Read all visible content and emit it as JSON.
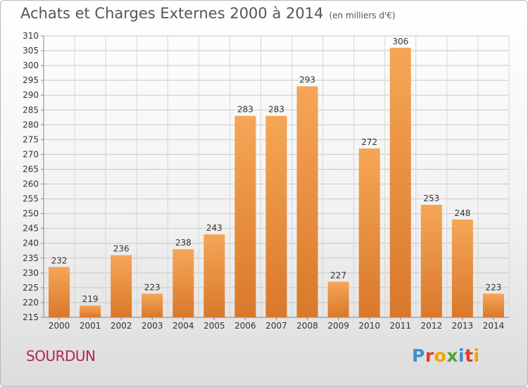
{
  "header": {
    "title": "Achats et Charges Externes 2000 à 2014",
    "unit": "(en milliers d'€)"
  },
  "footer": {
    "place": "SOURDUN",
    "logo_letters": [
      "P",
      "r",
      "o",
      "x",
      "i",
      "t",
      "i"
    ],
    "logo_colors": [
      "#3b8fd6",
      "#e6392b",
      "#f2a300",
      "#4aa832",
      "#3b8fd6",
      "#e6392b",
      "#f2a300"
    ]
  },
  "chart_data": {
    "type": "bar",
    "title": "Achats et Charges Externes 2000 à 2014",
    "unit": "(en milliers d'€)",
    "categories": [
      "2000",
      "2001",
      "2002",
      "2003",
      "2004",
      "2005",
      "2006",
      "2007",
      "2008",
      "2009",
      "2010",
      "2011",
      "2012",
      "2013",
      "2014"
    ],
    "values": [
      232,
      219,
      236,
      223,
      238,
      243,
      283,
      283,
      293,
      227,
      272,
      306,
      253,
      248,
      223
    ],
    "ylim": [
      215,
      310
    ],
    "ytick_step": 5,
    "grid": true,
    "bar_color_light": "#f6a657",
    "bar_color_dark": "#d9782a"
  }
}
